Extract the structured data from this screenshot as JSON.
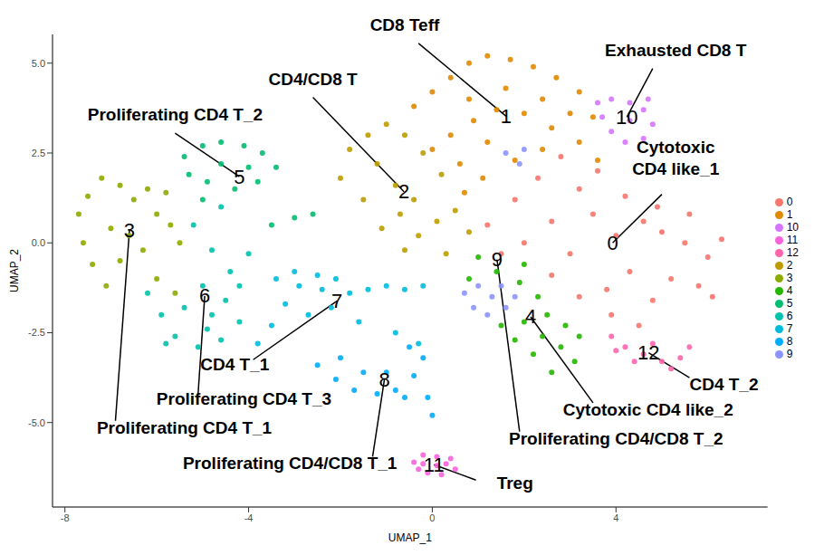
{
  "chart_data": {
    "type": "scatter",
    "x_label": "UMAP_1",
    "y_label": "UMAP_2",
    "xlim": [
      -8.27,
      7.3
    ],
    "ylim": [
      -7.35,
      5.8
    ],
    "xticks": [
      -8,
      -4,
      0,
      4
    ],
    "yticks": [
      {
        "value": -5,
        "label": "-5.0"
      },
      {
        "value": -2.5,
        "label": "-2.5"
      },
      {
        "value": 0,
        "label": "0.0"
      },
      {
        "value": 2.5,
        "label": "2.5"
      },
      {
        "value": 5,
        "label": "5.0"
      }
    ],
    "grid": false,
    "legend": "right",
    "series": [
      {
        "name": "0",
        "color": "#F8766D",
        "marker": "circle",
        "x": [
          1.2,
          1.8,
          2.3,
          2.8,
          3.2,
          3.6,
          2.0,
          2.6,
          3.0,
          3.5,
          4.0,
          4.2,
          4.6,
          5.0,
          5.5,
          6.0,
          6.3,
          5.8,
          5.2,
          4.8,
          4.3,
          3.8,
          3.2,
          2.6,
          5.6,
          4.9,
          3.9,
          4.5,
          6.1,
          1.5
        ],
        "y": [
          0.5,
          1.2,
          1.8,
          2.4,
          1.5,
          2.0,
          0.0,
          0.6,
          -0.3,
          0.8,
          0.2,
          1.3,
          0.6,
          0.3,
          0.0,
          -0.4,
          0.1,
          -1.2,
          -1.0,
          -1.6,
          -0.8,
          -1.3,
          -1.5,
          -0.9,
          0.8,
          1.0,
          -2.0,
          -2.3,
          -1.5,
          -0.3
        ]
      },
      {
        "name": "1",
        "color": "#E18A00",
        "marker": "circle",
        "x": [
          -0.4,
          0.0,
          0.4,
          0.8,
          1.2,
          1.7,
          2.2,
          2.7,
          3.2,
          3.5,
          3.2,
          2.6,
          2.0,
          1.4,
          0.9,
          0.4,
          0.0,
          0.6,
          1.2,
          1.8,
          2.4,
          3.0,
          1.6,
          2.4,
          0.8,
          3.6,
          0.7,
          1.1
        ],
        "y": [
          3.8,
          4.2,
          4.6,
          5.0,
          5.2,
          5.1,
          4.9,
          4.6,
          4.2,
          3.5,
          2.8,
          3.2,
          3.6,
          3.7,
          3.4,
          3.0,
          2.6,
          2.2,
          2.8,
          2.3,
          2.6,
          3.6,
          4.3,
          4.0,
          4.0,
          2.3,
          1.4,
          1.8
        ]
      },
      {
        "name": "2",
        "color": "#BE9C00",
        "marker": "circle",
        "x": [
          -1.8,
          -1.4,
          -1.0,
          -0.6,
          -1.2,
          -0.8,
          -0.4,
          -0.7,
          -1.1,
          -0.3,
          0.1,
          0.5,
          0.8,
          0.3,
          -0.6,
          -1.5,
          -2.0,
          0.2,
          -0.2
        ],
        "y": [
          2.6,
          3.0,
          3.3,
          3.0,
          2.2,
          1.6,
          1.2,
          0.8,
          0.4,
          0.2,
          0.6,
          0.9,
          0.3,
          -0.3,
          -0.2,
          1.2,
          1.8,
          1.9,
          2.5
        ]
      },
      {
        "name": "3",
        "color": "#8CAB00",
        "marker": "circle",
        "x": [
          -7.5,
          -7.7,
          -7.6,
          -7.4,
          -7.1,
          -6.8,
          -6.5,
          -6.2,
          -6.0,
          -5.7,
          -5.5,
          -6.3,
          -6.8,
          -6.0,
          -5.6,
          -6.6,
          -7.0,
          -5.8,
          -7.2
        ],
        "y": [
          1.3,
          0.8,
          0.0,
          -0.6,
          -1.2,
          1.6,
          1.2,
          1.5,
          0.8,
          0.5,
          0.0,
          -0.2,
          -0.5,
          -1.0,
          -1.4,
          0.2,
          0.4,
          1.4,
          1.8
        ]
      },
      {
        "name": "4",
        "color": "#24B700",
        "marker": "circle",
        "x": [
          1.0,
          1.4,
          0.8,
          1.9,
          2.3,
          2.0,
          2.4,
          2.8,
          3.1,
          2.6,
          2.2,
          1.8,
          2.9,
          3.2,
          1.5,
          2.5,
          2.0
        ],
        "y": [
          -0.4,
          -0.8,
          -1.0,
          -1.1,
          -1.5,
          -2.2,
          -2.6,
          -2.9,
          -3.3,
          -3.6,
          -3.1,
          -2.7,
          -2.3,
          -2.6,
          -2.3,
          -2.0,
          -0.6
        ]
      },
      {
        "name": "5",
        "color": "#00BE70",
        "marker": "circle",
        "x": [
          -5.4,
          -5.0,
          -4.6,
          -4.1,
          -3.7,
          -3.4,
          -3.8,
          -4.3,
          -4.9,
          -5.3,
          -4.6,
          -4.0,
          -5.0,
          -3.0,
          -2.6,
          -3.5
        ],
        "y": [
          2.4,
          2.7,
          2.8,
          2.7,
          2.5,
          2.1,
          1.7,
          1.5,
          1.7,
          1.9,
          2.2,
          2.1,
          1.2,
          0.7,
          0.8,
          0.5
        ]
      },
      {
        "name": "6",
        "color": "#00C1AB",
        "marker": "circle",
        "x": [
          -6.2,
          -5.9,
          -5.6,
          -5.1,
          -4.6,
          -4.2,
          -4.5,
          -5.0,
          -5.4,
          -4.8,
          -4.4,
          -4.8,
          -5.2,
          -4.6,
          -4.2,
          -5.8,
          -4.9,
          -4.0
        ],
        "y": [
          -1.4,
          -2.0,
          -2.6,
          -2.9,
          -2.7,
          -2.2,
          -1.6,
          -1.2,
          -1.8,
          -2.0,
          -0.8,
          -0.2,
          0.5,
          1.0,
          -1.2,
          -2.8,
          -2.4,
          -0.3
        ]
      },
      {
        "name": "7",
        "color": "#00BBDA",
        "marker": "circle",
        "x": [
          -3.8,
          -3.5,
          -3.2,
          -2.9,
          -2.5,
          -2.1,
          -1.8,
          -2.2,
          -2.7,
          -1.4,
          -1.0,
          -0.6,
          -0.2,
          -3.0,
          -2.4,
          -3.4,
          -1.6,
          -0.8,
          -0.3
        ],
        "y": [
          -2.8,
          -2.3,
          -1.7,
          -1.2,
          -0.9,
          -1.0,
          -1.4,
          -1.8,
          -2.0,
          -1.3,
          -1.2,
          -1.3,
          -1.2,
          -0.8,
          -1.3,
          -1.0,
          -2.2,
          -2.5,
          -2.8
        ]
      },
      {
        "name": "8",
        "color": "#00ACFC",
        "marker": "circle",
        "x": [
          -2.5,
          -2.1,
          -1.7,
          -1.2,
          -0.8,
          -0.4,
          -0.2,
          -0.5,
          -1.0,
          -1.5,
          -2.0,
          -0.1,
          0.0,
          -0.6
        ],
        "y": [
          -3.4,
          -3.8,
          -4.1,
          -4.2,
          -4.1,
          -3.7,
          -3.2,
          -2.9,
          -3.6,
          -3.6,
          -3.2,
          -4.3,
          -4.8,
          -4.3
        ]
      },
      {
        "name": "9",
        "color": "#8B93FF",
        "marker": "circle",
        "x": [
          0.7,
          1.0,
          1.3,
          1.6,
          1.2,
          0.9,
          1.5,
          1.8,
          1.6,
          1.9,
          2.0
        ],
        "y": [
          -1.4,
          -1.2,
          -1.5,
          -1.8,
          -2.0,
          -1.8,
          -1.2,
          -1.5,
          2.5,
          2.2,
          2.6
        ]
      },
      {
        "name": "10",
        "color": "#D575FE",
        "marker": "circle",
        "x": [
          3.6,
          3.9,
          4.3,
          4.6,
          4.8,
          4.6,
          4.2,
          3.9,
          4.3,
          3.7,
          4.7
        ],
        "y": [
          3.9,
          4.0,
          3.9,
          3.7,
          3.3,
          2.9,
          2.8,
          3.1,
          3.4,
          3.5,
          4.0
        ]
      },
      {
        "name": "11",
        "color": "#F962DD",
        "marker": "circle",
        "x": [
          -0.4,
          -0.2,
          0.1,
          0.4,
          0.5,
          0.2,
          -0.1,
          -0.3,
          0.1,
          0.3,
          -0.2
        ],
        "y": [
          -6.1,
          -5.9,
          -5.95,
          -6.0,
          -6.3,
          -6.45,
          -6.4,
          -6.3,
          -6.2,
          -6.15,
          -6.15
        ]
      },
      {
        "name": "12",
        "color": "#FF65AC",
        "marker": "circle",
        "x": [
          3.9,
          4.2,
          4.6,
          5.0,
          5.4,
          4.8,
          5.6,
          4.4,
          5.2,
          4.0
        ],
        "y": [
          -2.6,
          -2.9,
          -3.1,
          -3.3,
          -3.2,
          -2.8,
          -2.9,
          -3.3,
          -3.5,
          -3.0
        ]
      }
    ],
    "annotations": [
      {
        "text": "CD8 Teff",
        "cluster": "1"
      },
      {
        "text": "CD4/CD8 T",
        "cluster": "2"
      },
      {
        "text": "Exhausted CD8 T",
        "cluster": "10"
      },
      {
        "text": "Cytotoxic\nCD4 like_1",
        "cluster": "0"
      },
      {
        "text": "Proliferating CD4 T_2",
        "cluster": "5"
      },
      {
        "text": "CD4 T_1",
        "cluster": "7"
      },
      {
        "text": "Proliferating CD4 T_3",
        "cluster": "6"
      },
      {
        "text": "Proliferating CD4 T_1",
        "cluster": "3"
      },
      {
        "text": "Proliferating CD4/CD8 T_1",
        "cluster": "8"
      },
      {
        "text": "Treg",
        "cluster": "11"
      },
      {
        "text": "Proliferating CD4/CD8 T_2",
        "cluster": "9"
      },
      {
        "text": "Cytotoxic CD4 like_2",
        "cluster": "4"
      },
      {
        "text": "CD4 T_2",
        "cluster": "12"
      }
    ]
  }
}
